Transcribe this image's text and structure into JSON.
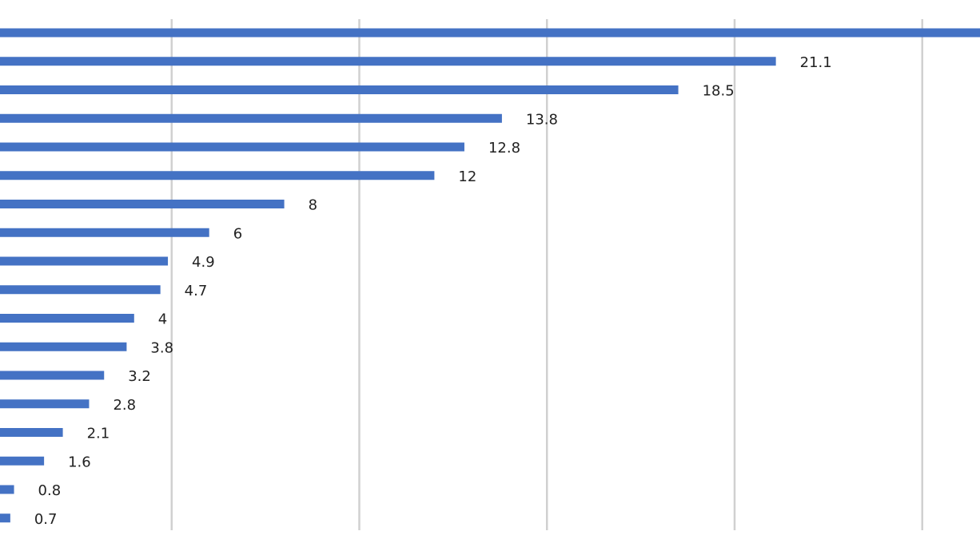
{
  "chart_data": {
    "type": "bar",
    "orientation": "horizontal",
    "values": [
      21.1,
      18.5,
      13.8,
      12.8,
      12,
      8,
      6,
      4.9,
      4.7,
      4,
      3.8,
      3.2,
      2.8,
      2.1,
      1.6,
      0.8,
      0.7
    ],
    "data_labels": [
      "21.1",
      "18.5",
      "13.8",
      "12.8",
      "12",
      "8",
      "6",
      "4.9",
      "4.7",
      "4",
      "3.8",
      "3.2",
      "2.8",
      "2.1",
      "1.6",
      "0.8",
      "0.7"
    ],
    "top_bar_value_min": 26.2,
    "grid": true,
    "legend": "none",
    "colors": {
      "bar": "#4472c4",
      "gridline": "#d0d0d0",
      "label": "#222222"
    }
  }
}
